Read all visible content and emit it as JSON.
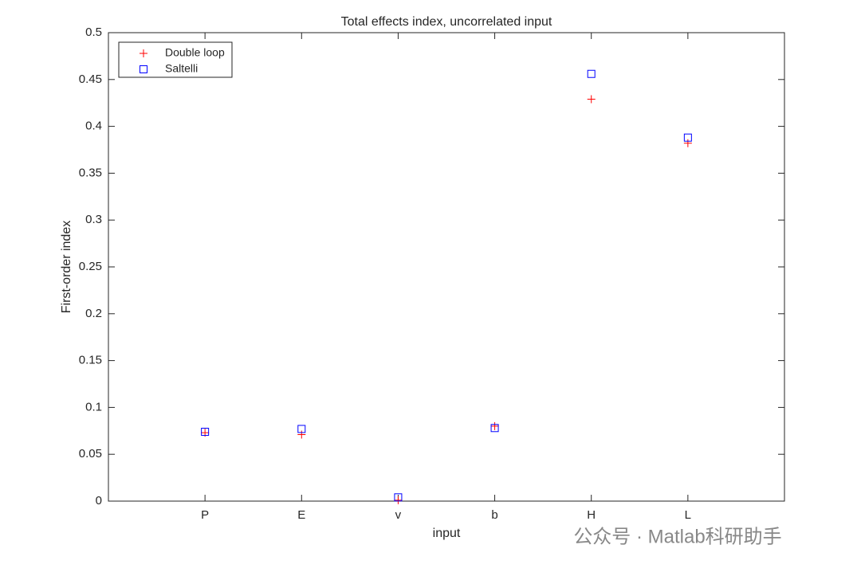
{
  "chart_data": {
    "type": "scatter",
    "title": "Total effects index, uncorrelated input",
    "x_label": "input",
    "y_label": "First-order index",
    "categories": [
      "P",
      "E",
      "v",
      "b",
      "H",
      "L"
    ],
    "series": [
      {
        "name": "Double loop",
        "color": "#ff0000",
        "marker": "plus",
        "values": [
          0.073,
          0.071,
          0.001,
          0.08,
          0.429,
          0.382
        ]
      },
      {
        "name": "Saltelli",
        "color": "#0000ff",
        "marker": "square",
        "values": [
          0.074,
          0.077,
          0.004,
          0.078,
          0.456,
          0.388
        ]
      }
    ],
    "ylim": [
      0,
      0.5
    ],
    "yticks": [
      0,
      0.05,
      0.1,
      0.15,
      0.2,
      0.25,
      0.3,
      0.35,
      0.4,
      0.45,
      0.5
    ],
    "legend": "upper-left",
    "watermark": "公众号 · Matlab科研助手"
  }
}
